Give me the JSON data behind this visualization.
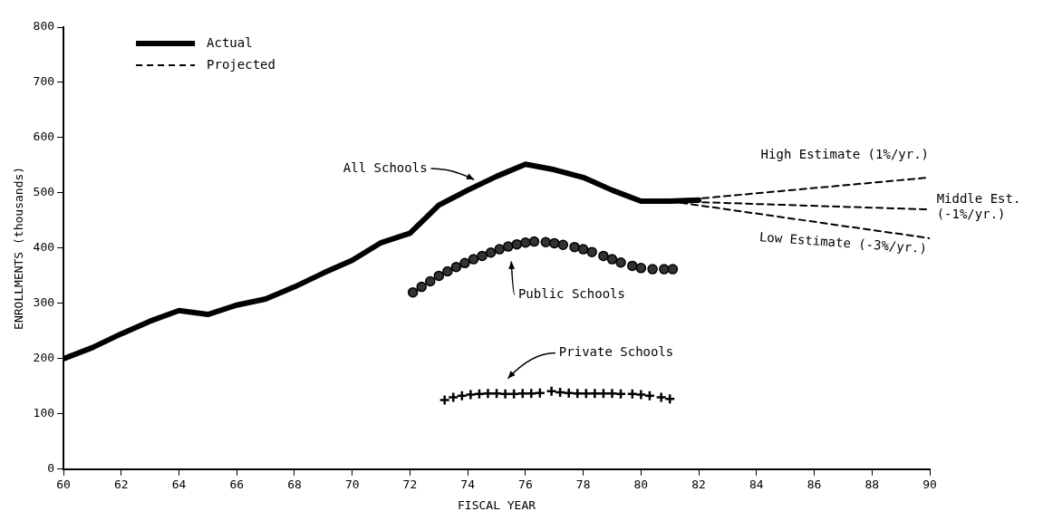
{
  "chart_data": {
    "type": "line",
    "xlabel": "FISCAL YEAR",
    "ylabel": "ENROLLMENTS (thousands)",
    "xlim": [
      60,
      90
    ],
    "xticks": [
      60,
      62,
      64,
      66,
      68,
      70,
      72,
      74,
      76,
      78,
      80,
      82,
      84,
      86,
      88,
      90
    ],
    "ylim": [
      0,
      800
    ],
    "yticks": [
      0,
      100,
      200,
      300,
      400,
      500,
      600,
      700,
      800
    ],
    "grid": false,
    "legend": "top left",
    "series": [
      {
        "name": "Actual",
        "line_style": "solid",
        "marker": "none",
        "color": "#000000",
        "x": [
          60,
          61,
          62,
          63,
          64,
          65,
          66,
          67,
          68,
          69,
          70,
          71,
          72,
          73,
          74,
          75,
          76,
          77,
          78,
          79,
          80,
          81,
          82
        ],
        "values": [
          200,
          220,
          245,
          268,
          287,
          280,
          297,
          308,
          330,
          355,
          378,
          410,
          427,
          478,
          505,
          530,
          552,
          542,
          528,
          505,
          485,
          485,
          487
        ]
      },
      {
        "name": "Projected",
        "line_style": "dashed",
        "marker": "none",
        "color": "#000000",
        "x": [
          81,
          90
        ],
        "values": [
          485,
          528
        ]
      },
      {
        "type": "line",
        "line_style": "dashed",
        "marker": "none",
        "color": "#000000",
        "x": [
          81,
          90
        ],
        "values": [
          485,
          470
        ]
      },
      {
        "type": "line",
        "line_style": "dashed",
        "marker": "none",
        "color": "#000000",
        "x": [
          81,
          90
        ],
        "values": [
          485,
          418
        ]
      },
      {
        "type": "scatter",
        "marker": "circle",
        "color": "#333333",
        "x": [
          72.1,
          72.4,
          72.7,
          73,
          73.3,
          73.6,
          73.9,
          74.2,
          74.5,
          74.8,
          75.1,
          75.4,
          75.7,
          76,
          76.3,
          76.7,
          77,
          77.3,
          77.7,
          78,
          78.3,
          78.7,
          79,
          79.3,
          79.7,
          80,
          80.4,
          80.8,
          81.1
        ],
        "values": [
          320,
          330,
          340,
          350,
          358,
          366,
          373,
          380,
          386,
          392,
          398,
          403,
          407,
          410,
          412,
          411,
          409,
          406,
          402,
          398,
          393,
          386,
          380,
          374,
          368,
          364,
          362,
          362,
          362
        ]
      },
      {
        "type": "scatter",
        "marker": "cross",
        "color": "#000000",
        "x": [
          73.2,
          73.5,
          73.8,
          74.1,
          74.4,
          74.7,
          75,
          75.3,
          75.6,
          75.9,
          76.2,
          76.5,
          76.9,
          77.2,
          77.5,
          77.8,
          78.1,
          78.4,
          78.7,
          79,
          79.3,
          79.7,
          80,
          80.3,
          80.7,
          81
        ],
        "values": [
          125,
          130,
          133,
          135,
          136,
          137,
          137,
          136,
          136,
          137,
          137,
          138,
          141,
          139,
          138,
          137,
          137,
          137,
          137,
          137,
          136,
          136,
          135,
          133,
          130,
          127
        ]
      }
    ],
    "annotations": [
      "All Schools",
      "Public Schools",
      "Private Schools",
      "High Estimate (1%/yr.)",
      "Middle Est.\n(-1%/yr.)",
      "Low Estimate (-3%/yr.)"
    ]
  }
}
